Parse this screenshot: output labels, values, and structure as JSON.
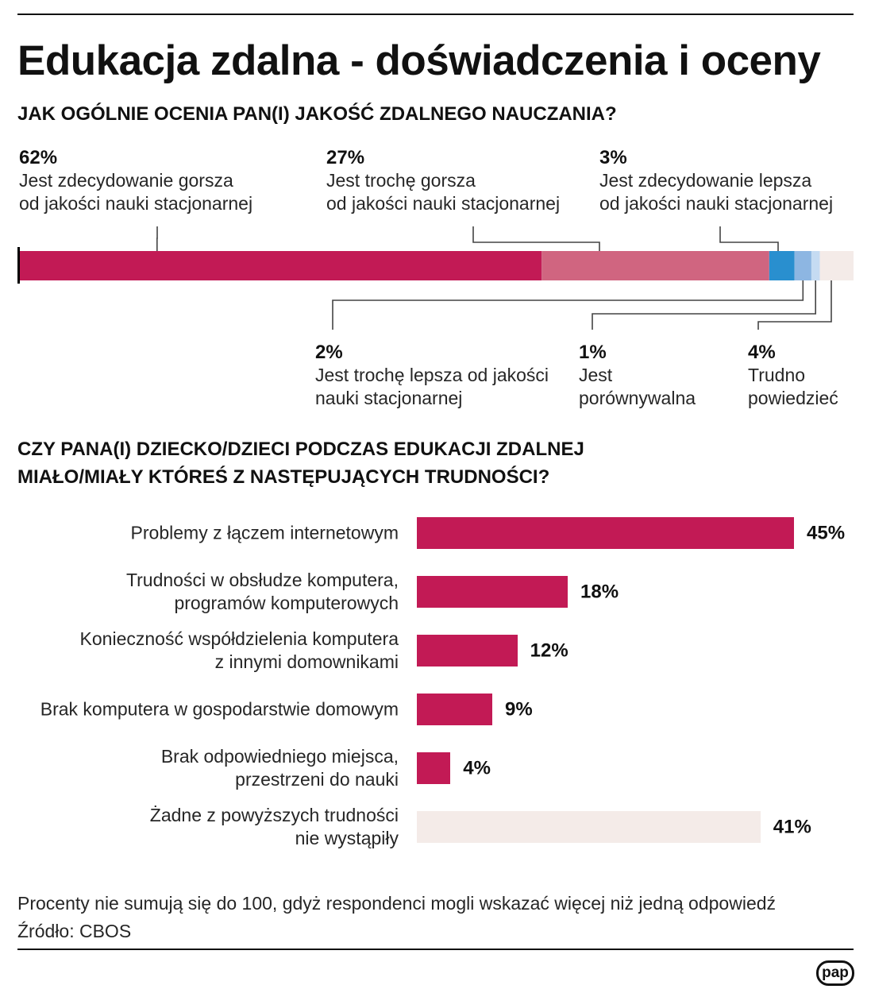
{
  "header": {
    "title": "Edukacja zdalna - doświadczenia i oceny"
  },
  "chart_data": [
    {
      "type": "bar",
      "stacked": true,
      "title": "JAK OGÓLNIE OCENIA PAN(I) JAKOŚĆ ZDALNEGO NAUCZANIA?",
      "categories": [
        "Jest zdecydowanie gorsza\nod jakości nauki stacjonarnej",
        "Jest trochę gorsza\nod jakości nauki stacjonarnej",
        "Jest zdecydowanie lepsza\nod jakości nauki stacjonarnej",
        "Jest trochę lepsza od jakości\nnauki stacjonarnej",
        "Jest\nporównywalna",
        "Trudno\npowiedzieć"
      ],
      "values": [
        62,
        27,
        3,
        2,
        1,
        4
      ],
      "data_labels": [
        "62%",
        "27%",
        "3%",
        "2%",
        "1%",
        "4%"
      ],
      "colors": [
        "#c21a55",
        "#d06580",
        "#298fcf",
        "#8db6e2",
        "#c5dbf2",
        "#f4ebe8"
      ]
    },
    {
      "type": "bar",
      "stacked": false,
      "title": "CZY PANA(I) DZIECKO/DZIECI PODCZAS EDUKACJI ZDALNEJ\nMIAŁO/MIAŁY KTÓREŚ Z NASTĘPUJĄCYCH TRUDNOŚCI?",
      "categories": [
        "Problemy z łączem internetowym",
        "Trudności w obsłudze komputera,\nprogramów komputerowych",
        "Konieczność współdzielenia komputera\nz innymi domownikami",
        "Brak komputera w gospodarstwie domowym",
        "Brak odpowiedniego miejsca,\nprzestrzeni do nauki",
        "Żadne z powyższych trudności\nnie wystąpiły"
      ],
      "values": [
        45,
        18,
        12,
        9,
        4,
        41
      ],
      "data_labels": [
        "45%",
        "18%",
        "12%",
        "9%",
        "4%",
        "41%"
      ],
      "colors": [
        "#c21a55",
        "#c21a55",
        "#c21a55",
        "#c21a55",
        "#c21a55",
        "#f4ebe8"
      ]
    }
  ],
  "footer": {
    "note": "Procenty nie sumują się do 100, gdyż respondenci mogli wskazać więcej niż jedną odpowiedź",
    "source": "Źródło: CBOS",
    "logo": "pap"
  }
}
